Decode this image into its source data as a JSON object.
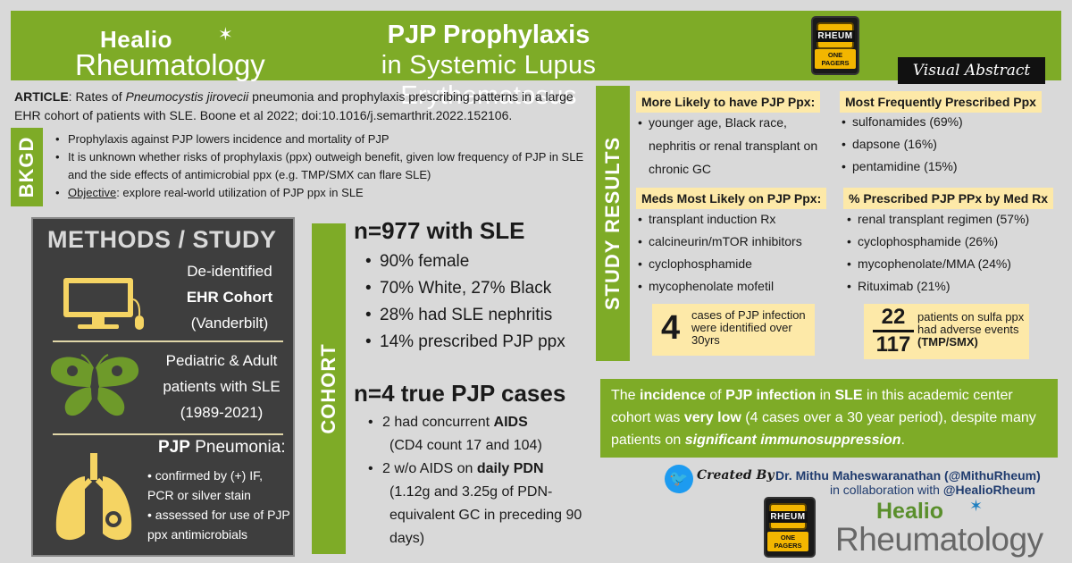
{
  "header": {
    "brand_line1": "Healio",
    "brand_line2": "Rheumatology",
    "title_line1": "PJP Prophylaxis",
    "title_line2": "in Systemic Lupus Erythematosus",
    "badge_top": "RHEUM",
    "badge_bottom": "ONE PAGERS",
    "visual_abstract": "Visual Abstract"
  },
  "article": {
    "label": "ARTICLE",
    "text_before": ": Rates of ",
    "organism": "Pneumocystis jirovecii",
    "text_after": " pneumonia and prophylaxis prescribing patterns in a large EHR cohort of patients with SLE. Boone et al 2022; doi:10.1016/j.semarthrit.2022.152106."
  },
  "background": {
    "tab": "BKGD",
    "items": [
      "Prophylaxis against PJP lowers incidence and mortality of PJP",
      "It is unknown whether risks of prophylaxis (ppx) outweigh benefit, given low frequency of PJP in SLE and the side effects of antimicrobial ppx (e.g. TMP/SMX can flare SLE)"
    ],
    "objective_label": "Objective",
    "objective_text": ": explore real-world utilization of PJP ppx in SLE"
  },
  "methods": {
    "title": "METHODS / STUDY",
    "block1": [
      "De-identified",
      "EHR Cohort",
      "(Vanderbilt)"
    ],
    "block2": [
      "Pediatric & Adult",
      "patients with SLE",
      "(1989-2021)"
    ],
    "pjp_bold": "PJP",
    "pjp_rest": " Pneumonia:",
    "pjp_items": [
      "confirmed by (+) IF, PCR or silver stain",
      "assessed for use of PJP ppx antimicrobials"
    ]
  },
  "cohort": {
    "tab": "COHORT",
    "heading1": "n=977 with SLE",
    "items1": [
      "90% female",
      "70% White, 27% Black",
      "28% had SLE nephritis",
      "14% prescribed PJP ppx"
    ],
    "heading2": "n=4 true PJP cases",
    "case1_pre": "2 had concurrent ",
    "case1_bold": "AIDS",
    "case1_sub": "(CD4 count 17 and 104)",
    "case2_pre": "2 w/o AIDS on ",
    "case2_bold": "daily PDN",
    "case2_sub": "(1.12g and 3.25g of PDN-equivalent GC in preceding 90 days)"
  },
  "results": {
    "tab": "STUDY RESULTS",
    "likely_head": "More Likely to have PJP Ppx:",
    "likely_text": "younger age, Black race, nephritis or renal transplant on chronic GC",
    "freq_head": "Most Frequently Prescribed Ppx",
    "freq_items": [
      "sulfonamides (69%)",
      "dapsone (16%)",
      "pentamidine (15%)"
    ],
    "meds_head": "Meds Most Likely on PJP Ppx:",
    "meds_items": [
      "transplant induction Rx",
      "calcineurin/mTOR inhibitors",
      "cyclophosphamide",
      "mycophenolate mofetil"
    ],
    "pct_head": "% Prescribed PJP PPx by Med Rx",
    "pct_items": [
      "renal transplant regimen (57%)",
      "cyclophosphamide (26%)",
      "mycophenolate/MMA (24%)",
      "Rituximab (21%)"
    ],
    "stat1_num": "4",
    "stat1_text": "cases of PJP infection were identified over 30yrs",
    "stat2_num": "22",
    "stat2_den": "117",
    "stat2_text_pre": "patients on sulfa ppx had adverse events ",
    "stat2_text_bold": "(TMP/SMX)"
  },
  "conclusion": {
    "p1": "The ",
    "b1": "incidence",
    "p2": " of ",
    "b2": "PJP infection",
    "p3": " in ",
    "b3": "SLE",
    "p4": " in this academic center cohort was ",
    "b4": "very low",
    "p5": " (4 cases over a 30 year period), despite many patients on ",
    "b5": "significant immunosuppression",
    "p6": "."
  },
  "credit": {
    "created_by": "Created By",
    "author": "Dr. Mithu Maheswaranathan (",
    "author_handle": "@MithuRheum",
    "author_close": ")",
    "collab_pre": "in collaboration with ",
    "collab_handle": "@HealioRheum"
  },
  "colors": {
    "green": "#7eab27",
    "yellow_highlight": "#fde9a8",
    "dark_panel": "#3e3e3e",
    "icon_yellow": "#f5d463",
    "icon_green": "#6e9a2a"
  }
}
